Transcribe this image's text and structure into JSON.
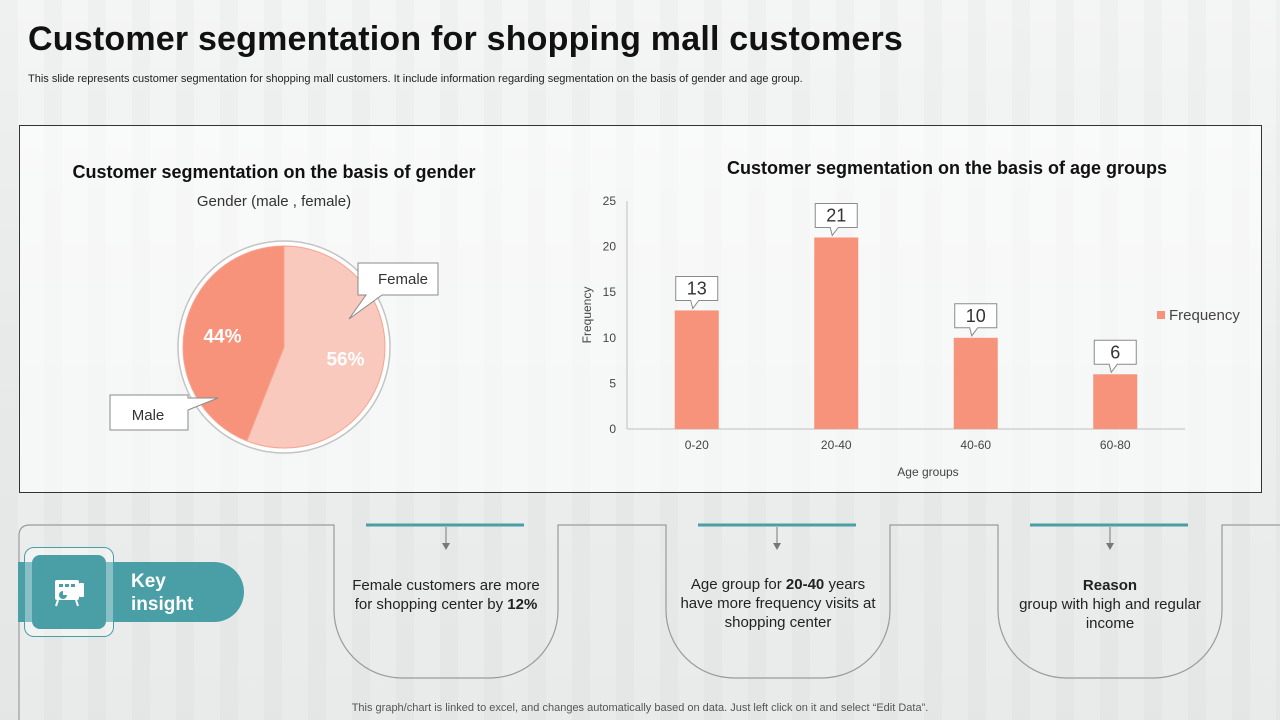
{
  "title": "Customer segmentation for shopping mall customers",
  "subtitle": "This slide represents customer segmentation for shopping mall customers. It include information regarding segmentation on the basis of gender and age group.",
  "colors": {
    "accent": "#4a9ea6",
    "bar": "#f7937a",
    "pie_female": "#f9c9bd",
    "pie_male": "#f7937a"
  },
  "chart_data": [
    {
      "type": "pie",
      "title": "Customer segmentation on the basis of gender",
      "subtitle": "Gender (male , female)",
      "categories": [
        "Female",
        "Male"
      ],
      "values": [
        56,
        44
      ],
      "value_labels": [
        "56%",
        "44%"
      ]
    },
    {
      "type": "bar",
      "title": "Customer segmentation on the basis of age groups",
      "categories": [
        "0-20",
        "20-40",
        "40-60",
        "60-80"
      ],
      "series": [
        {
          "name": "Frequency",
          "values": [
            13,
            21,
            10,
            6
          ]
        }
      ],
      "xlabel": "Age groups",
      "ylabel": "Frequency",
      "ylim": [
        0,
        25
      ],
      "yticks": [
        0,
        5,
        10,
        15,
        20,
        25
      ],
      "legend": "right"
    }
  ],
  "key_insight": {
    "label_line1": "Key",
    "label_line2": "insight",
    "icon": "presentation-chart-icon"
  },
  "insights": [
    {
      "pre": "Female customers are more for shopping center by ",
      "bold": "12%",
      "post": ""
    },
    {
      "pre": "Age group for ",
      "bold": "20-40",
      "post": " years have more frequency visits at shopping center"
    },
    {
      "bold": "Reason",
      "post": "group with high and regular income"
    }
  ],
  "footer": "This graph/chart is linked to excel,  and changes automatically based on data. Just left click on it and select “Edit Data”."
}
